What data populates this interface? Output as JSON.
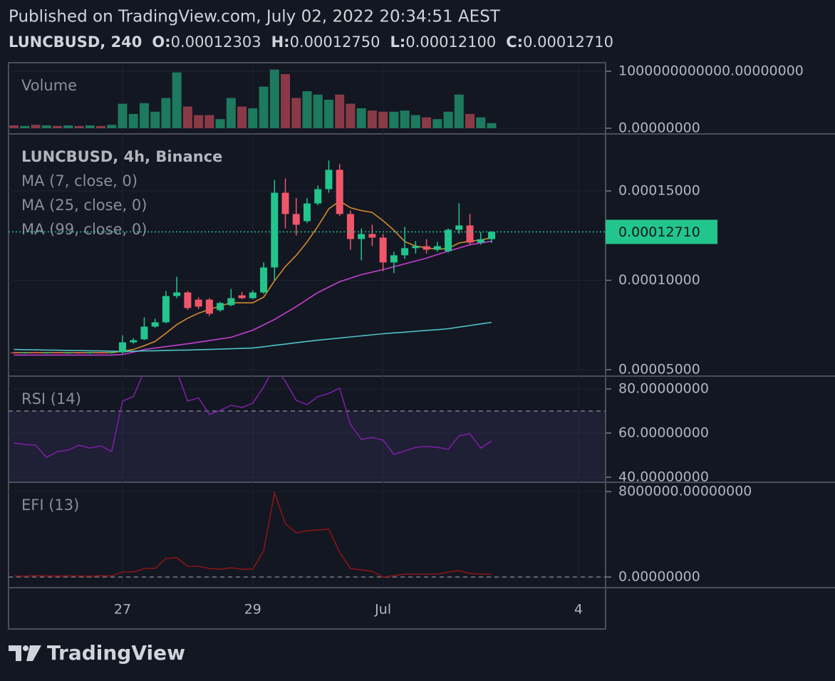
{
  "header": {
    "published": "Published on TradingView.com, July 02, 2022 20:34:51 AEST",
    "symbol": "LUNCBUSD, 240",
    "ohlc": [
      {
        "key": "O:",
        "value": "0.00012303"
      },
      {
        "key": "H:",
        "value": "0.00012750"
      },
      {
        "key": "L:",
        "value": "0.00012100"
      },
      {
        "key": "C:",
        "value": "0.00012710"
      }
    ]
  },
  "footer": {
    "brand": "TradingView"
  },
  "chart_data": [
    {
      "type": "bar",
      "title": "Volume",
      "up_color": "#1d7a5e",
      "down_color": "#8a3a47",
      "values": [
        50000000000.0,
        40000000000.0,
        60000000000.0,
        50000000000.0,
        40000000000.0,
        50000000000.0,
        40000000000.0,
        50000000000.0,
        40000000000.0,
        60000000000.0,
        430000000000.0,
        250000000000.0,
        440000000000.0,
        290000000000.0,
        530000000000.0,
        980000000000.0,
        380000000000.0,
        230000000000.0,
        230000000000.0,
        160000000000.0,
        530000000000.0,
        380000000000.0,
        350000000000.0,
        730000000000.0,
        1030000000000.0,
        950000000000.0,
        530000000000.0,
        650000000000.0,
        590000000000.0,
        500000000000.0,
        590000000000.0,
        430000000000.0,
        350000000000.0,
        310000000000.0,
        290000000000.0,
        290000000000.0,
        310000000000.0,
        230000000000.0,
        190000000000.0,
        160000000000.0,
        290000000000.0,
        590000000000.0,
        250000000000.0,
        190000000000.0,
        90000000000.0
      ],
      "ylim": [
        -100000000000.0,
        1150000000000.0
      ],
      "yticks": [
        {
          "value": 1000000000000,
          "label": "1000000000000.00000000"
        },
        {
          "value": 0,
          "label": "0.00000000"
        }
      ]
    },
    {
      "type": "candlestick",
      "title": "LUNCBUSD, 4h, Binance",
      "up_color": "#22c58b",
      "down_color": "#f0566a",
      "open": [
        5.96e-05,
        5.93e-05,
        5.97e-05,
        5.94e-05,
        5.96e-05,
        5.93e-05,
        5.95e-05,
        5.92e-05,
        5.96e-05,
        5.94e-05,
        5.97e-05,
        6.53e-05,
        6.7e-05,
        7.41e-05,
        7.65e-05,
        9.12e-05,
        9.32e-05,
        8.92e-05,
        8.92e-05,
        8.33e-05,
        8.61e-05,
        9.16e-05,
        9e-05,
        9.32e-05,
        0.0001072,
        0.000149,
        0.0001371,
        0.0001331,
        0.000143,
        0.000151,
        0.0001618,
        0.0001371,
        0.0001231,
        0.0001259,
        0.0001239,
        0.00011,
        0.000114,
        0.000118,
        0.0001191,
        0.0001171,
        0.0001163,
        0.0001283,
        0.0001307,
        0.0001211,
        0.00012303
      ],
      "high": [
        6e-05,
        5.99e-05,
        6.01e-05,
        5.98e-05,
        6e-05,
        5.97e-05,
        5.99e-05,
        5.98e-05,
        6e-05,
        5.99e-05,
        6.93e-05,
        6.77e-05,
        7.93e-05,
        7.85e-05,
        9.4e-05,
        0.000102,
        9.4e-05,
        9.05e-05,
        9e-05,
        8.8e-05,
        9.52e-05,
        9.35e-05,
        9.45e-05,
        0.00011,
        0.0001562,
        0.000157,
        0.000146,
        0.000146,
        0.000153,
        0.000167,
        0.000165,
        0.000139,
        0.000129,
        0.0001311,
        0.000126,
        0.000116,
        0.0001299,
        0.000122,
        0.000123,
        0.0001215,
        0.000129,
        0.0001431,
        0.0001371,
        0.000127,
        0.0001275
      ],
      "low": [
        5.9e-05,
        5.9e-05,
        5.92e-05,
        5.89e-05,
        5.91e-05,
        5.89e-05,
        5.9e-05,
        5.89e-05,
        5.91e-05,
        5.9e-05,
        5.9e-05,
        6.45e-05,
        6.65e-05,
        7.35e-05,
        7.6e-05,
        9e-05,
        8.35e-05,
        8.4e-05,
        8e-05,
        8.25e-05,
        8.55e-05,
        8.95e-05,
        8.95e-05,
        9.25e-05,
        0.0001,
        0.0001291,
        0.0001251,
        0.000132,
        0.000142,
        0.000149,
        0.000136,
        0.0001171,
        0.0001112,
        0.0001191,
        0.0001052,
        0.000104,
        0.000112,
        0.000115,
        0.000115,
        0.000116,
        0.0001155,
        0.000126,
        0.0001199,
        0.00012,
        0.000121
      ],
      "close": [
        5.93e-05,
        5.97e-05,
        5.94e-05,
        5.96e-05,
        5.93e-05,
        5.95e-05,
        5.92e-05,
        5.96e-05,
        5.94e-05,
        5.97e-05,
        6.53e-05,
        6.65e-05,
        7.41e-05,
        7.65e-05,
        9.12e-05,
        9.32e-05,
        8.45e-05,
        8.53e-05,
        8.13e-05,
        8.73e-05,
        9e-05,
        9e-05,
        9.32e-05,
        0.0001072,
        0.000149,
        0.0001371,
        0.0001311,
        0.000143,
        0.000151,
        0.0001618,
        0.0001371,
        0.0001231,
        0.0001259,
        0.0001239,
        0.00011,
        0.000114,
        0.000118,
        0.0001191,
        0.0001171,
        0.0001191,
        0.0001283,
        0.0001307,
        0.0001211,
        0.000123,
        0.0001271
      ],
      "series": [
        {
          "name": "MA (7, close, 0)",
          "color": "#d08a30",
          "values": [
            5.95e-05,
            5.95e-05,
            5.95e-05,
            5.95e-05,
            5.95e-05,
            5.95e-05,
            5.95e-05,
            5.95e-05,
            5.95e-05,
            5.95e-05,
            6.03e-05,
            6.13e-05,
            6.34e-05,
            6.58e-05,
            7.04e-05,
            7.52e-05,
            7.88e-05,
            8.16e-05,
            8.37e-05,
            8.56e-05,
            8.75e-05,
            8.74e-05,
            8.74e-05,
            9.06e-05,
            9.97e-05,
            0.0001077,
            0.0001139,
            0.0001215,
            0.0001302,
            0.00014,
            0.0001443,
            0.0001406,
            0.000139,
            0.000138,
            0.0001333,
            0.000128,
            0.0001217,
            0.0001191,
            0.0001183,
            0.0001173,
            0.0001179,
            0.0001209,
            0.0001219,
            0.0001226,
            0.0001238
          ]
        },
        {
          "name": "MA (25, close, 0)",
          "color": "#c43fd0",
          "values": [
            5.82e-05,
            5.82e-05,
            5.82e-05,
            5.82e-05,
            5.82e-05,
            5.82e-05,
            5.82e-05,
            5.82e-05,
            5.82e-05,
            5.82e-05,
            5.85e-05,
            5.98e-05,
            6.13e-05,
            6.21e-05,
            6.29e-05,
            6.37e-05,
            6.45e-05,
            6.54e-05,
            6.63e-05,
            6.72e-05,
            6.81e-05,
            7.01e-05,
            7.21e-05,
            7.51e-05,
            7.81e-05,
            8.17e-05,
            8.53e-05,
            8.93e-05,
            9.32e-05,
            9.62e-05,
            9.92e-05,
            0.0001012,
            0.0001032,
            0.0001046,
            0.000106,
            0.0001076,
            0.0001092,
            0.0001108,
            0.0001124,
            0.0001144,
            0.0001163,
            0.0001181,
            0.0001199,
            0.0001209,
            0.0001219
          ]
        },
        {
          "name": "MA (99, close, 0)",
          "color": "#4fc3c7",
          "values": [
            6.13e-05,
            6.12e-05,
            6.11e-05,
            6.1e-05,
            6.09e-05,
            6.08e-05,
            6.07e-05,
            6.06e-05,
            6.05e-05,
            6.04e-05,
            6.02e-05,
            6.03e-05,
            6.05e-05,
            6.06e-05,
            6.08e-05,
            6.09e-05,
            6.1e-05,
            6.12e-05,
            6.13e-05,
            6.15e-05,
            6.17e-05,
            6.19e-05,
            6.21e-05,
            6.28e-05,
            6.36e-05,
            6.43e-05,
            6.51e-05,
            6.58e-05,
            6.65e-05,
            6.71e-05,
            6.77e-05,
            6.83e-05,
            6.89e-05,
            6.95e-05,
            7.01e-05,
            7.06e-05,
            7.1e-05,
            7.15e-05,
            7.2e-05,
            7.24e-05,
            7.29e-05,
            7.38e-05,
            7.47e-05,
            7.56e-05,
            7.65e-05
          ]
        }
      ],
      "last_price": {
        "value": 0.0001271,
        "label": "0.00012710"
      },
      "ylim": [
        4.64e-05,
        0.0001819
      ],
      "yticks": [
        {
          "value": 0.00015,
          "label": "0.00015000"
        },
        {
          "value": 0.0001,
          "label": "0.00010000"
        },
        {
          "value": 5e-05,
          "label": "0.00005000"
        }
      ],
      "xlim": [
        -0.5,
        54.5
      ],
      "xticks": [
        {
          "value": 10,
          "label": "27"
        },
        {
          "value": 22,
          "label": "29"
        },
        {
          "value": 34,
          "label": "Jul"
        },
        {
          "value": 52,
          "label": "4"
        }
      ]
    },
    {
      "type": "line",
      "band": [
        30,
        70
      ],
      "series": [
        {
          "name": "RSI (14)",
          "color": "#7b1fa2",
          "values": [
            55.5,
            54.8,
            54.5,
            49,
            51.6,
            52.3,
            54.5,
            53.2,
            54.2,
            51.6,
            74.5,
            76.5,
            88,
            89.5,
            91,
            88,
            74.5,
            76,
            68.4,
            70.3,
            72.6,
            71.6,
            73.5,
            81,
            90,
            83.5,
            74.8,
            72.9,
            76.5,
            78,
            80.3,
            63.9,
            57.1,
            58,
            56.8,
            50.3,
            51.9,
            53.5,
            53.9,
            53.5,
            52.6,
            58.7,
            59.7,
            53.2,
            56.5
          ]
        }
      ],
      "ylim": [
        37.7,
        85.8
      ],
      "yticks": [
        {
          "value": 80,
          "label": "80.00000000"
        },
        {
          "value": 60,
          "label": "60.00000000"
        },
        {
          "value": 40,
          "label": "40.00000000"
        }
      ]
    },
    {
      "type": "line",
      "hline": 0,
      "series": [
        {
          "name": "EFI (13)",
          "color": "#8a1515",
          "values": [
            100000.0,
            80000.0,
            120000.0,
            100000.0,
            90000.0,
            110000.0,
            100000.0,
            80000.0,
            120000.0,
            100000.0,
            470000.0,
            470000.0,
            800000.0,
            800000.0,
            1730000.0,
            1800000.0,
            1000000.0,
            1000000.0,
            800000.0,
            730000.0,
            870000.0,
            730000.0,
            730000.0,
            2470000.0,
            7870000.0,
            5000000.0,
            4130000.0,
            4330000.0,
            4400000.0,
            4470000.0,
            2330000.0,
            800000.0,
            670000.0,
            530000.0,
            0,
            130000.0,
            270000.0,
            270000.0,
            270000.0,
            270000.0,
            470000.0,
            600000.0,
            330000.0,
            270000.0,
            270000.0
          ]
        }
      ],
      "ylim": [
        -1000000,
        8866667
      ],
      "yticks": [
        {
          "value": 8000000,
          "label": "8000000.00000000"
        },
        {
          "value": 0,
          "label": "0.00000000"
        }
      ]
    }
  ]
}
